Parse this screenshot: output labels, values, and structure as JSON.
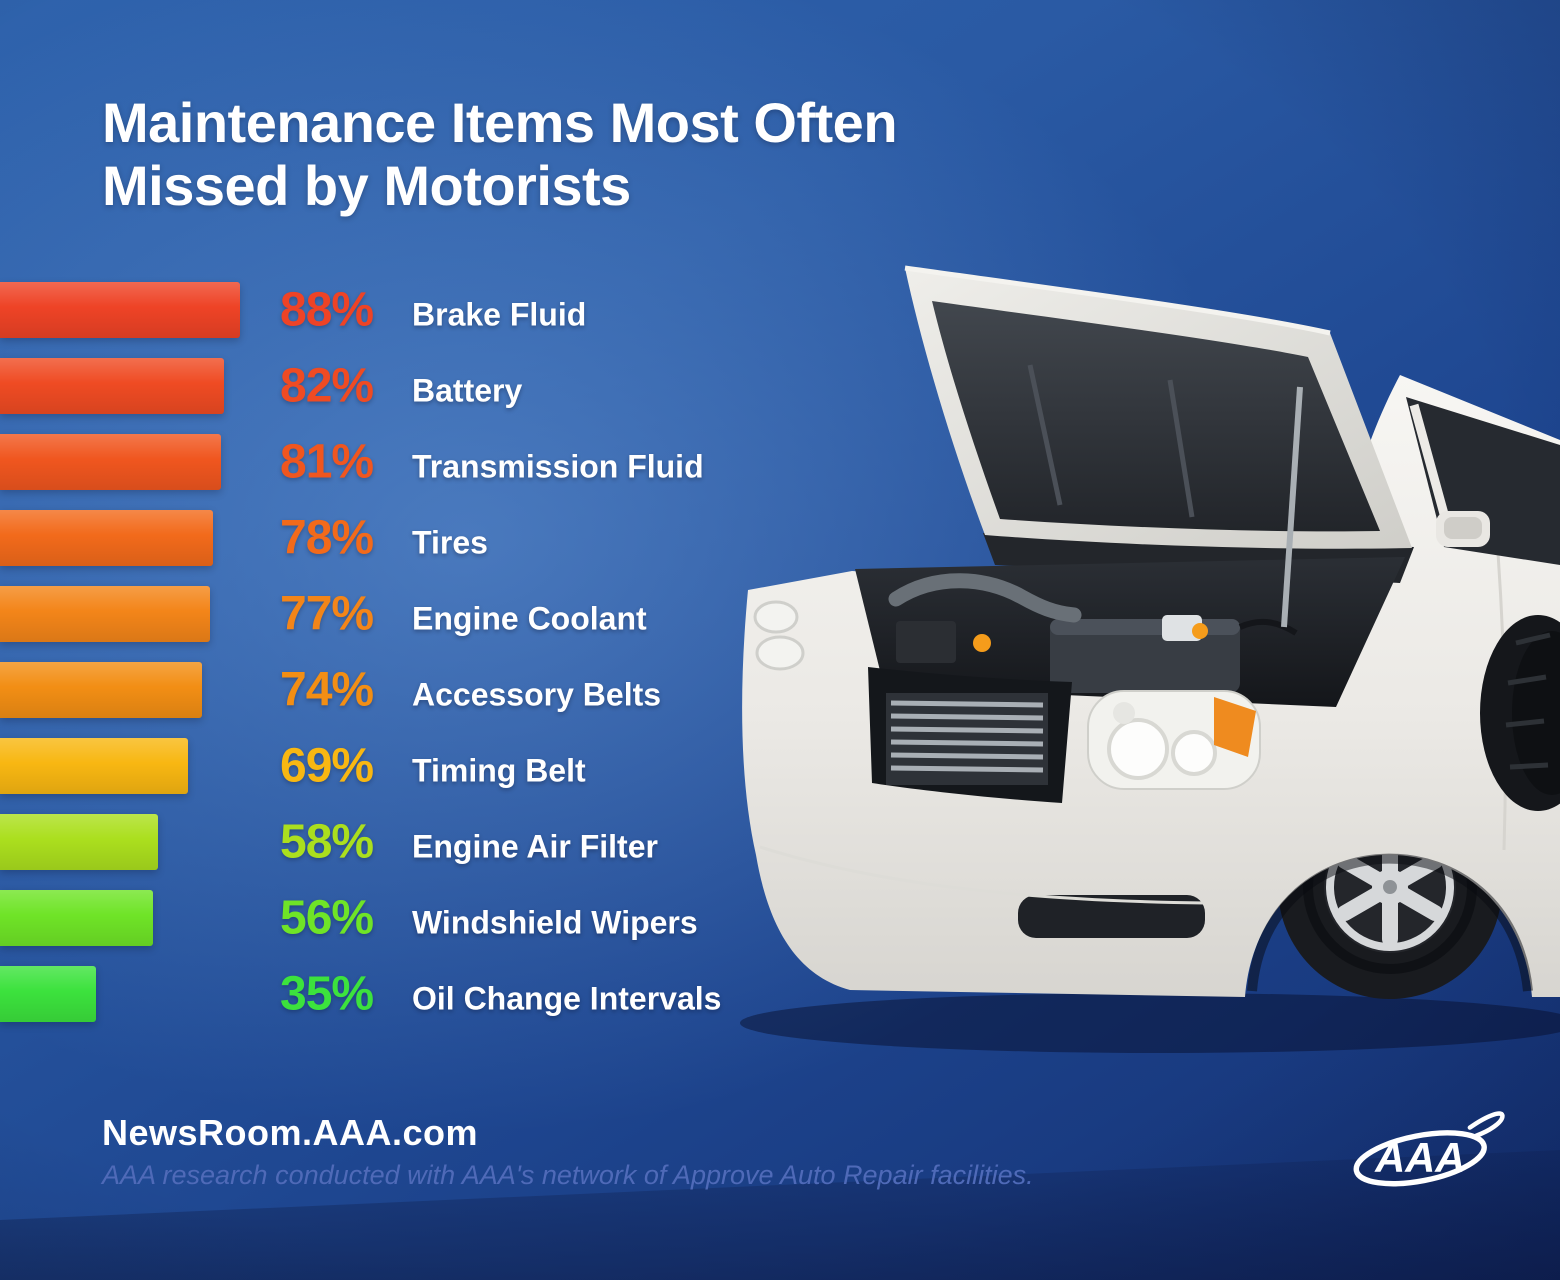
{
  "title": {
    "line1": "Maintenance Items Most Often",
    "line2": "Missed by Motorists"
  },
  "chart_data": {
    "type": "bar",
    "orientation": "horizontal",
    "title": "Maintenance Items Most Often Missed by Motorists",
    "unit": "%",
    "xlim": [
      0,
      100
    ],
    "grid": false,
    "legend": false,
    "categories": [
      "Brake Fluid",
      "Battery",
      "Transmission Fluid",
      "Tires",
      "Engine Coolant",
      "Accessory Belts",
      "Timing Belt",
      "Engine Air Filter",
      "Windshield Wipers",
      "Oil Change Intervals"
    ],
    "values": [
      88,
      82,
      81,
      78,
      77,
      74,
      69,
      58,
      56,
      35
    ],
    "bar_colors": [
      "#ee4326",
      "#ef4b23",
      "#f0561f",
      "#f26a1b",
      "#f38519",
      "#f28e14",
      "#f8b712",
      "#abdf1e",
      "#6fe427",
      "#3ce23d"
    ]
  },
  "footer": {
    "site": "NewsRoom.AAA.com",
    "note": "AAA research conducted with AAA's network of Approve Auto Repair facilities."
  },
  "logo": {
    "text": "AAA"
  },
  "illustration": {
    "name": "car-with-open-hood"
  },
  "colors": {
    "background_center": "#3a6db6",
    "background_edge": "#142f6e",
    "title_text": "#ffffff",
    "label_text": "#ffffff",
    "note_text": "#4f6ab8"
  }
}
